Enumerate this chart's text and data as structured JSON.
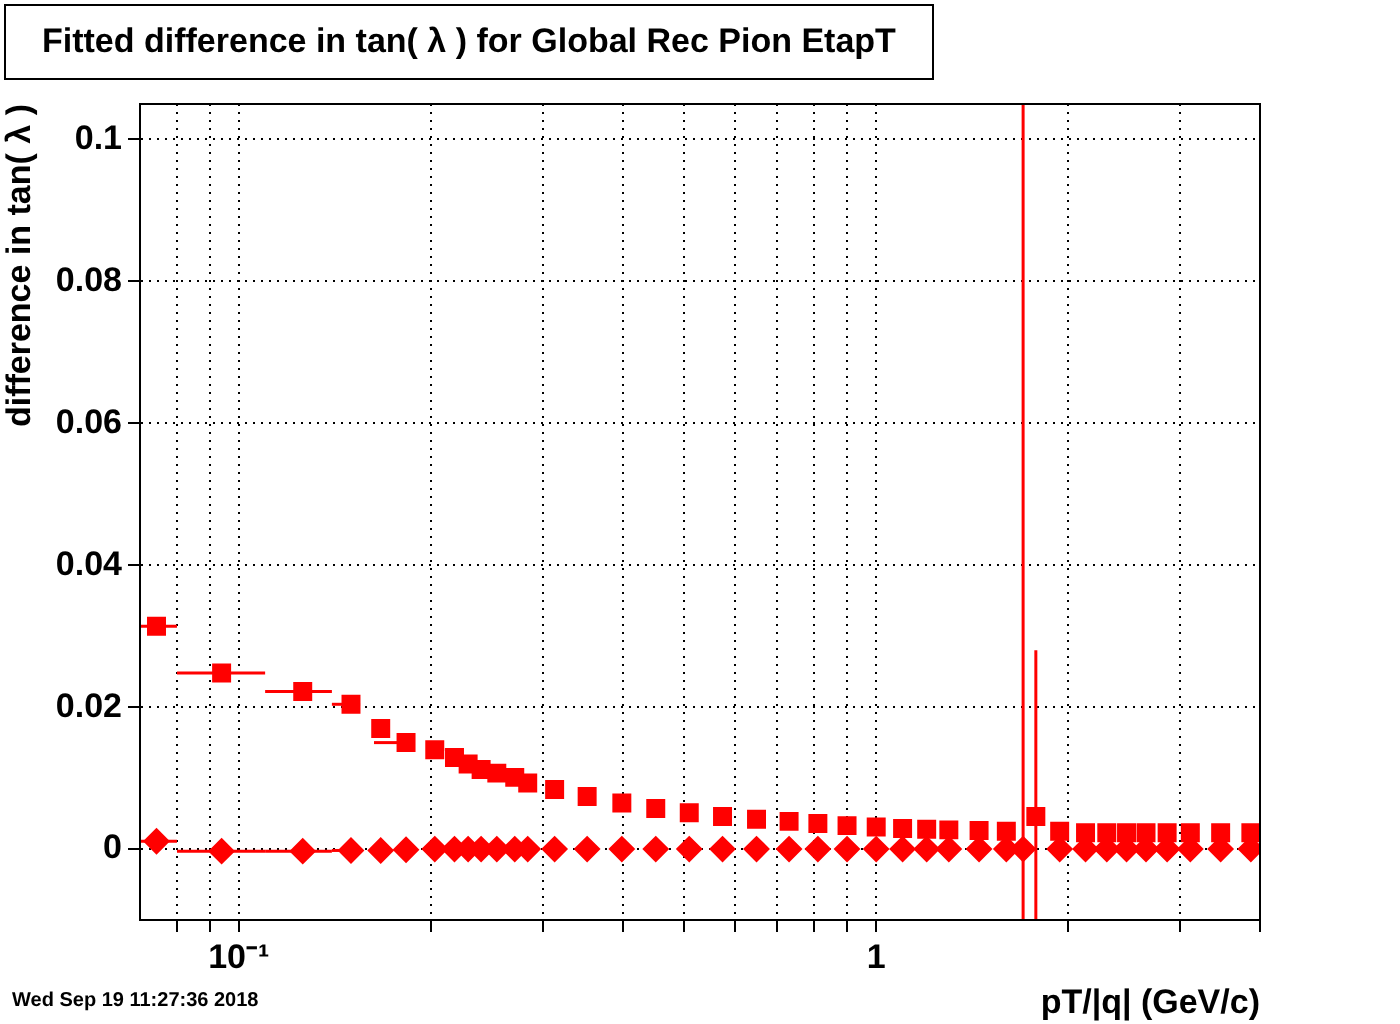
{
  "chart_data": {
    "type": "scatter",
    "title": "Fitted difference in tan( λ ) for Global Rec Pion EtapT",
    "xlabel": "pT/|q| (GeV/c)",
    "ylabel": "difference in tan( λ )",
    "annotations": [
      "Wed Sep 19 11:27:36 2018"
    ],
    "log": "x",
    "grid": true,
    "xlim": [
      0.07,
      4
    ],
    "ylim": [
      -0.01,
      0.105
    ],
    "xticks": [
      {
        "value": 0.08,
        "label": null
      },
      {
        "value": 0.09,
        "label": null
      },
      {
        "value": 0.1,
        "label": "10⁻¹"
      },
      {
        "value": 0.2,
        "label": null
      },
      {
        "value": 0.3,
        "label": null
      },
      {
        "value": 0.4,
        "label": null
      },
      {
        "value": 0.5,
        "label": null
      },
      {
        "value": 0.6,
        "label": null
      },
      {
        "value": 0.7,
        "label": null
      },
      {
        "value": 0.8,
        "label": null
      },
      {
        "value": 0.9,
        "label": null
      },
      {
        "value": 1,
        "label": "1"
      },
      {
        "value": 2,
        "label": null
      },
      {
        "value": 3,
        "label": null
      },
      {
        "value": 4,
        "label": null
      }
    ],
    "yticks": [
      0,
      0.02,
      0.04,
      0.06,
      0.08,
      0.1
    ],
    "series": [
      {
        "color": "#ff0000",
        "marker": "square",
        "x": [
          0.0743,
          0.094,
          0.126,
          0.15,
          0.167,
          0.183,
          0.203,
          0.218,
          0.229,
          0.24,
          0.254,
          0.271,
          0.284,
          0.313,
          0.352,
          0.399,
          0.451,
          0.509,
          0.574,
          0.649,
          0.73,
          0.81,
          0.9,
          1.0,
          1.1,
          1.2,
          1.3,
          1.45,
          1.6,
          1.78,
          1.94,
          2.13,
          2.3,
          2.47,
          2.65,
          2.86,
          3.11,
          3.47,
          3.87
        ],
        "values": [
          0.0314,
          0.0248,
          0.0222,
          0.0204,
          0.017,
          0.015,
          0.014,
          0.0129,
          0.012,
          0.0112,
          0.0107,
          0.0101,
          0.0093,
          0.0084,
          0.0074,
          0.0065,
          0.0057,
          0.0051,
          0.0046,
          0.0042,
          0.0039,
          0.0036,
          0.0033,
          0.0031,
          0.0029,
          0.0028,
          0.0027,
          0.0026,
          0.0025,
          0.0046,
          0.0025,
          0.0023,
          0.0023,
          0.0023,
          0.0023,
          0.0023,
          0.0023,
          0.0023,
          0.0023
        ],
        "errors": [
          null,
          null,
          null,
          null,
          null,
          null,
          null,
          null,
          null,
          null,
          null,
          null,
          null,
          null,
          null,
          null,
          null,
          null,
          null,
          null,
          null,
          null,
          null,
          null,
          null,
          null,
          null,
          null,
          null,
          [
            -0.01,
            0.028
          ],
          null,
          null,
          null,
          null,
          null,
          null,
          null,
          null,
          null
        ],
        "xerrors": [
          [
            0.07,
            0.08
          ],
          [
            0.08,
            0.11
          ],
          [
            0.11,
            0.14
          ],
          [
            0.14,
            0.155
          ],
          null,
          [
            0.163,
            0.178
          ],
          [
            0.198,
            0.21
          ],
          null,
          null,
          null,
          null,
          null,
          null,
          null,
          null,
          null,
          null,
          null,
          null,
          null,
          null,
          null,
          null,
          null,
          null,
          null,
          null,
          null,
          null,
          null,
          null,
          null,
          null,
          null,
          null,
          null,
          null,
          null,
          null
        ]
      },
      {
        "color": "#ff0000",
        "marker": "diamond",
        "x": [
          0.0743,
          0.094,
          0.126,
          0.15,
          0.167,
          0.183,
          0.203,
          0.218,
          0.229,
          0.24,
          0.254,
          0.271,
          0.284,
          0.313,
          0.352,
          0.399,
          0.451,
          0.509,
          0.574,
          0.649,
          0.73,
          0.81,
          0.9,
          1.0,
          1.1,
          1.2,
          1.3,
          1.45,
          1.6,
          1.7,
          1.94,
          2.13,
          2.3,
          2.47,
          2.65,
          2.86,
          3.11,
          3.47,
          3.87
        ],
        "values": [
          0.0011,
          -0.0003,
          -0.0003,
          -0.0002,
          -0.0002,
          -0.0001,
          0,
          0,
          0,
          0,
          0,
          0,
          0,
          0,
          0,
          0,
          0,
          0,
          0,
          0,
          0,
          0,
          0,
          0,
          0,
          0,
          0,
          0,
          0,
          0,
          0,
          0,
          0,
          0,
          0,
          0,
          0,
          0,
          0
        ],
        "errors": [
          null,
          null,
          null,
          null,
          null,
          null,
          null,
          null,
          null,
          null,
          null,
          null,
          null,
          null,
          null,
          null,
          null,
          null,
          null,
          null,
          null,
          null,
          null,
          null,
          null,
          null,
          null,
          null,
          null,
          [
            -0.01,
            0.105
          ],
          null,
          null,
          null,
          null,
          null,
          null,
          null,
          null,
          null
        ],
        "xerrors": [
          [
            0.07,
            0.08
          ],
          [
            0.08,
            0.11
          ],
          [
            0.11,
            0.14
          ],
          [
            0.14,
            0.155
          ],
          null,
          null,
          null,
          null,
          null,
          null,
          null,
          null,
          null,
          null,
          null,
          null,
          null,
          null,
          null,
          null,
          null,
          null,
          null,
          null,
          null,
          null,
          null,
          null,
          null,
          null,
          null,
          null,
          null,
          null,
          null,
          null,
          null,
          null,
          null
        ]
      }
    ]
  }
}
